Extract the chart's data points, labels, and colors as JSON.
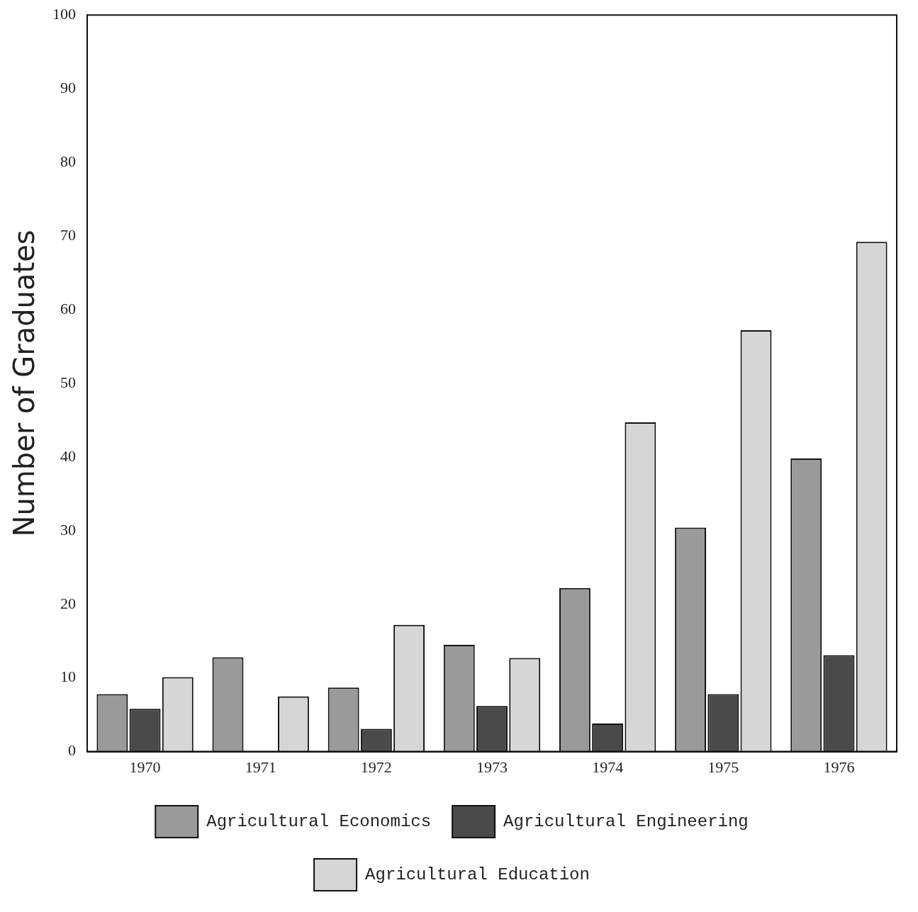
{
  "chart_data": {
    "type": "bar",
    "ylabel": "Number of Graduates",
    "categories": [
      "1970",
      "1971",
      "1972",
      "1973",
      "1974",
      "1975",
      "1976"
    ],
    "series": [
      {
        "name": "Agricultural Economics",
        "color": "#9a9a9a",
        "values": [
          7.8,
          12.8,
          8.7,
          14.5,
          22.2,
          30.4,
          39.8
        ]
      },
      {
        "name": "Agricultural Engineering",
        "color": "#4a4a4a",
        "values": [
          5.8,
          null,
          3.1,
          6.2,
          3.8,
          7.8,
          13.1
        ]
      },
      {
        "name": "Agricultural Education",
        "color": "#d6d6d6",
        "values": [
          10.1,
          7.5,
          17.2,
          12.7,
          44.7,
          57.2,
          69.2
        ]
      }
    ],
    "ylim": [
      0,
      100
    ],
    "yticks": [
      0,
      10,
      20,
      30,
      40,
      50,
      60,
      70,
      80,
      90,
      100
    ],
    "grid": false,
    "legend": "bottom"
  }
}
